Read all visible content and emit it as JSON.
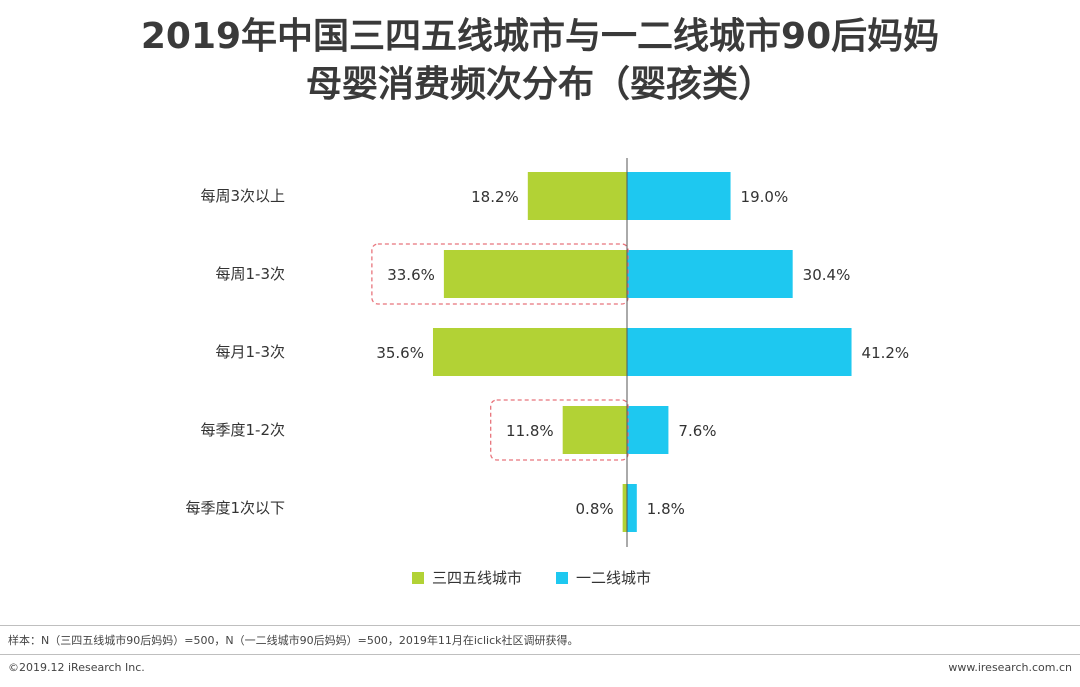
{
  "chart_data": {
    "type": "bar",
    "orientation": "horizontal-diverging",
    "title_line1": "2019年中国三四五线城市与一二线城市90后妈妈",
    "title_line2": "母婴消费频次分布（婴孩类）",
    "categories": [
      "每周3次以上",
      "每周1-3次",
      "每月1-3次",
      "每季度1-2次",
      "每季度1次以下"
    ],
    "series": [
      {
        "name": "三四五线城市",
        "color": "#b2d235",
        "side": "left",
        "values": [
          18.2,
          33.6,
          35.6,
          11.8,
          0.8
        ],
        "labels": [
          "18.2%",
          "33.6%",
          "35.6%",
          "11.8%",
          "0.8%"
        ]
      },
      {
        "name": "一二线城市",
        "color": "#1ec8f0",
        "side": "right",
        "values": [
          19.0,
          30.4,
          41.2,
          7.6,
          1.8
        ],
        "labels": [
          "19.0%",
          "30.4%",
          "41.2%",
          "7.6%",
          "1.8%"
        ]
      }
    ],
    "highlighted_categories": [
      1,
      3
    ],
    "highlight_color": "#e8747c",
    "value_max": 41.2,
    "legend_position": "bottom-center"
  },
  "footer": {
    "note": "样本：N（三四五线城市90后妈妈）=500，N（一二线城市90后妈妈）=500，2019年11月在iclick社区调研获得。",
    "copyright": "©2019.12 iResearch Inc.",
    "website": "www.iresearch.com.cn"
  }
}
